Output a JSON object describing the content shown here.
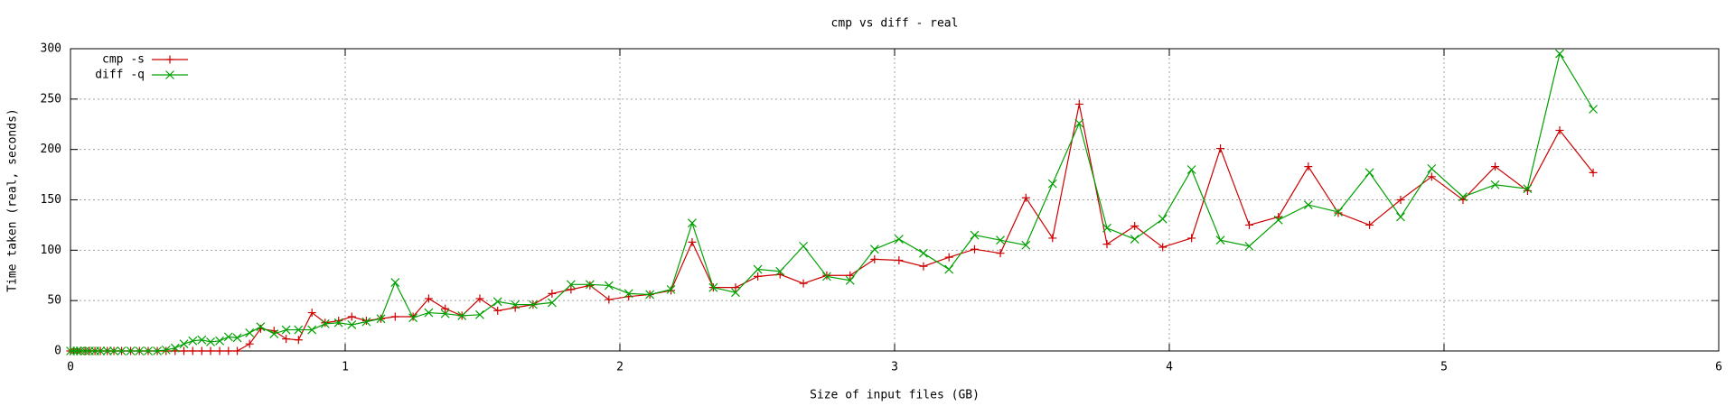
{
  "chart_data": {
    "type": "line",
    "title": "cmp vs diff - real",
    "x_label": "Size of input files (GB)",
    "y_label": "Time taken (real, seconds)",
    "x": [
      0,
      0.012,
      0.024,
      0.036,
      0.053,
      0.069,
      0.089,
      0.109,
      0.134,
      0.158,
      0.186,
      0.219,
      0.251,
      0.283,
      0.316,
      0.348,
      0.381,
      0.413,
      0.445,
      0.478,
      0.51,
      0.543,
      0.575,
      0.607,
      0.652,
      0.692,
      0.741,
      0.785,
      0.83,
      0.879,
      0.927,
      0.976,
      1.024,
      1.077,
      1.13,
      1.182,
      1.247,
      1.304,
      1.364,
      1.425,
      1.49,
      1.555,
      1.619,
      1.684,
      1.753,
      1.822,
      1.891,
      1.96,
      2.032,
      2.109,
      2.186,
      2.263,
      2.34,
      2.421,
      2.502,
      2.583,
      2.668,
      2.753,
      2.838,
      2.927,
      3.016,
      3.105,
      3.198,
      3.291,
      3.385,
      3.478,
      3.575,
      3.672,
      3.773,
      3.874,
      3.976,
      4.081,
      4.186,
      4.291,
      4.397,
      4.506,
      4.615,
      4.729,
      4.842,
      4.955,
      5.069,
      5.186,
      5.304,
      5.421,
      5.543
    ],
    "series": [
      {
        "name": "cmp -s",
        "color": "#cc0000",
        "marker": "plus",
        "values": [
          0,
          0,
          0,
          0,
          0,
          0,
          0,
          0,
          0,
          0,
          0,
          0,
          0,
          0,
          0,
          0,
          0,
          0,
          0,
          0,
          0,
          0,
          0,
          0,
          7,
          22,
          20,
          12,
          11,
          38,
          28,
          30,
          34,
          30,
          32,
          34,
          34,
          52,
          42,
          35,
          52,
          40,
          43,
          46,
          57,
          61,
          65,
          51,
          54,
          56,
          60,
          108,
          63,
          63,
          74,
          76,
          67,
          75,
          75,
          91,
          90,
          84,
          93,
          101,
          97,
          152,
          112,
          245,
          106,
          124,
          103,
          112,
          201,
          125,
          133,
          183,
          137,
          125,
          150,
          173,
          150,
          183,
          159,
          219,
          177
        ]
      },
      {
        "name": "diff -q",
        "color": "#00a000",
        "marker": "cross",
        "values": [
          0,
          0,
          0,
          0,
          0,
          0,
          0,
          0,
          0,
          0,
          0,
          0,
          0,
          0,
          0,
          1,
          3,
          7,
          10,
          11,
          9,
          10,
          14,
          13,
          18,
          24,
          17,
          21,
          21,
          21,
          27,
          28,
          26,
          29,
          32,
          68,
          33,
          38,
          37,
          35,
          36,
          49,
          46,
          46,
          48,
          66,
          66,
          65,
          57,
          56,
          61,
          127,
          63,
          58,
          81,
          79,
          104,
          74,
          70,
          101,
          111,
          97,
          81,
          115,
          110,
          105,
          166,
          226,
          122,
          111,
          131,
          180,
          110,
          104,
          130,
          145,
          138,
          177,
          133,
          181,
          153,
          165,
          161,
          295,
          240
        ]
      }
    ],
    "xlim": [
      0,
      6
    ],
    "xticks": [
      0,
      1,
      2,
      3,
      4,
      5,
      6
    ],
    "ylim": [
      0,
      300
    ],
    "yticks": [
      0,
      50,
      100,
      150,
      200,
      250,
      300
    ],
    "grid": true,
    "legend": "top-left"
  }
}
